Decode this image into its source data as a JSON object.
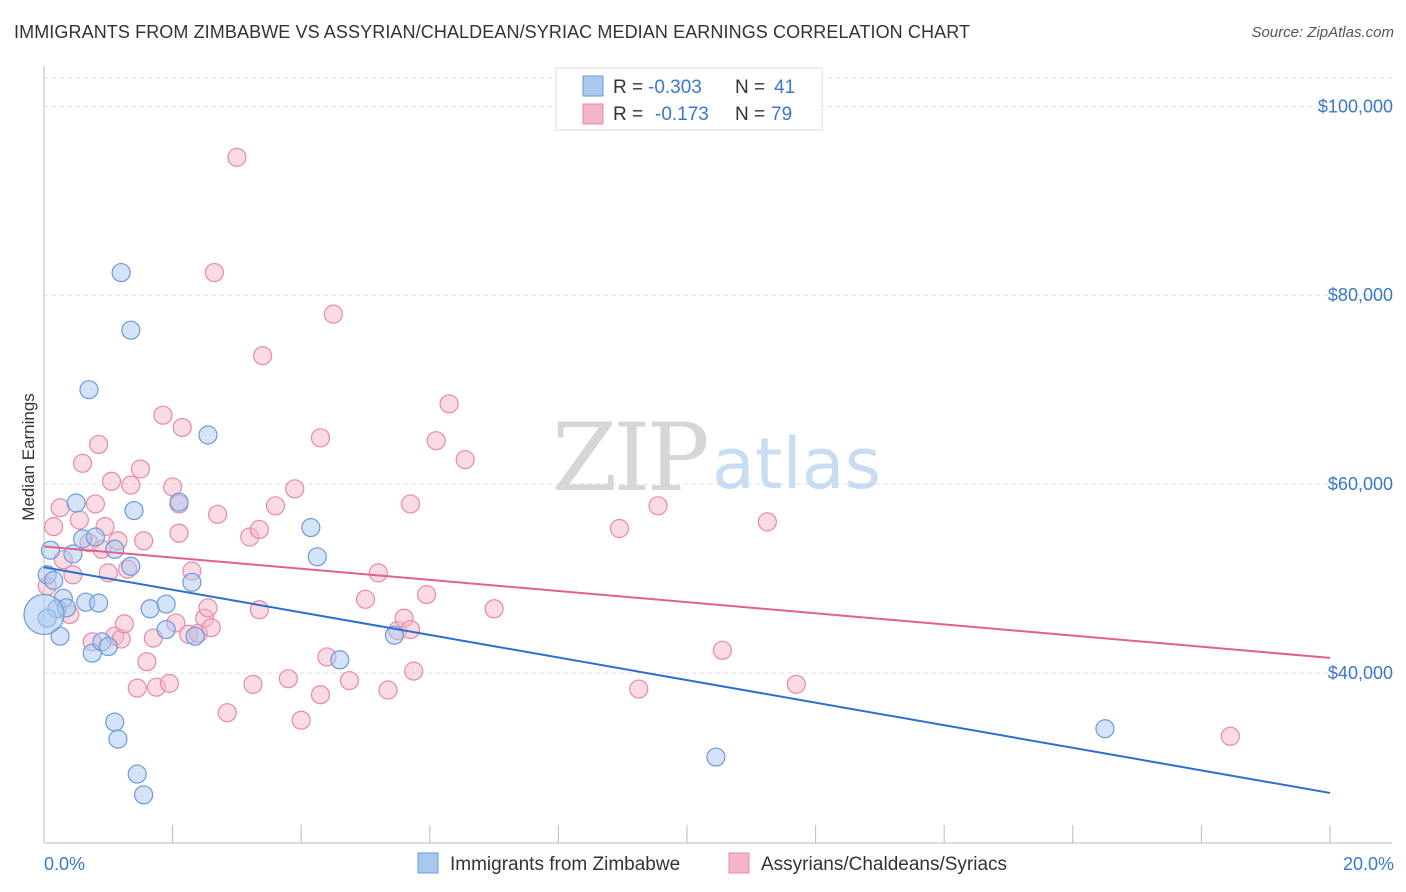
{
  "header": {
    "title": "IMMIGRANTS FROM ZIMBABWE VS ASSYRIAN/CHALDEAN/SYRIAC MEDIAN EARNINGS CORRELATION CHART",
    "source": "Source: ZipAtlas.com"
  },
  "watermark": {
    "zip": "ZIP",
    "atlas": "atlas"
  },
  "legend": {
    "r_label": "R =",
    "n_label": "N =",
    "rows": [
      {
        "r": "-0.303",
        "n": "41",
        "color": "#a9c8f0"
      },
      {
        "r": "-0.173",
        "n": "79",
        "color": "#f5b5c8"
      }
    ]
  },
  "colors": {
    "blue_fill": "#a9c8f0",
    "blue_stroke": "#6c9ad8",
    "blue_line": "#2a6fd0",
    "pink_fill": "#f5b5c8",
    "pink_stroke": "#e68aa8",
    "pink_line": "#e0628c",
    "grid": "#dddddd",
    "axis_text": "#3a78c9"
  },
  "chart_data": {
    "type": "scatter",
    "title": "IMMIGRANTS FROM ZIMBABWE VS ASSYRIAN/CHALDEAN/SYRIAC MEDIAN EARNINGS CORRELATION CHART",
    "xlabel": "",
    "ylabel": "Median Earnings",
    "xlim": [
      0,
      20
    ],
    "ylim": [
      22000,
      103000
    ],
    "x_ticks": [
      {
        "value": 0,
        "label": "0.0%"
      },
      {
        "value": 20,
        "label": "20.0%"
      }
    ],
    "y_ticks": [
      {
        "value": 40000,
        "label": "$40,000"
      },
      {
        "value": 60000,
        "label": "$60,000"
      },
      {
        "value": 80000,
        "label": "$80,000"
      },
      {
        "value": 100000,
        "label": "$100,000"
      }
    ],
    "grid": "horizontal dashed",
    "legend_position": "top-center",
    "series": [
      {
        "name": "Immigrants from Zimbabwe",
        "color": "#a9c8f0",
        "trend": {
          "x": [
            0,
            20
          ],
          "y": [
            51200,
            27300
          ]
        },
        "points": [
          [
            0.05,
            50400
          ],
          [
            0.15,
            49800
          ],
          [
            0.2,
            46800
          ],
          [
            0.25,
            43900
          ],
          [
            0.3,
            47900
          ],
          [
            0.35,
            46900
          ],
          [
            0.05,
            45800
          ],
          [
            0.1,
            53000
          ],
          [
            0.45,
            52600
          ],
          [
            0.5,
            58000
          ],
          [
            0.6,
            54200
          ],
          [
            0.65,
            47500
          ],
          [
            0.7,
            70000
          ],
          [
            0.75,
            42100
          ],
          [
            0.8,
            54400
          ],
          [
            0.85,
            47400
          ],
          [
            0.9,
            43300
          ],
          [
            1.0,
            42800
          ],
          [
            1.1,
            53100
          ],
          [
            1.1,
            34800
          ],
          [
            1.15,
            33000
          ],
          [
            1.2,
            82400
          ],
          [
            1.35,
            76300
          ],
          [
            1.35,
            51300
          ],
          [
            1.4,
            57200
          ],
          [
            1.45,
            29300
          ],
          [
            1.55,
            27100
          ],
          [
            1.65,
            46800
          ],
          [
            1.9,
            47300
          ],
          [
            1.9,
            44600
          ],
          [
            2.1,
            58100
          ],
          [
            2.3,
            49600
          ],
          [
            2.35,
            43900
          ],
          [
            2.55,
            65200
          ],
          [
            4.15,
            55400
          ],
          [
            4.25,
            52300
          ],
          [
            4.6,
            41400
          ],
          [
            5.45,
            44000
          ],
          [
            10.45,
            31100
          ],
          [
            16.5,
            34100
          ],
          [
            0.0,
            46200
          ]
        ]
      },
      {
        "name": "Assyrians/Chaldeans/Syriacs",
        "color": "#f5b5c8",
        "trend": {
          "x": [
            0,
            20
          ],
          "y": [
            53400,
            41600
          ]
        },
        "points": [
          [
            0.05,
            49200
          ],
          [
            0.15,
            55500
          ],
          [
            0.25,
            57500
          ],
          [
            0.3,
            52000
          ],
          [
            0.45,
            50400
          ],
          [
            0.55,
            56200
          ],
          [
            0.6,
            62200
          ],
          [
            0.7,
            53800
          ],
          [
            0.75,
            43300
          ],
          [
            0.8,
            57900
          ],
          [
            0.85,
            64200
          ],
          [
            0.9,
            53100
          ],
          [
            0.95,
            55500
          ],
          [
            1.0,
            50600
          ],
          [
            1.05,
            60300
          ],
          [
            1.1,
            43900
          ],
          [
            1.15,
            54000
          ],
          [
            1.2,
            43600
          ],
          [
            1.25,
            45200
          ],
          [
            1.3,
            51000
          ],
          [
            1.35,
            59900
          ],
          [
            1.45,
            38400
          ],
          [
            1.5,
            61600
          ],
          [
            1.55,
            54000
          ],
          [
            1.6,
            41200
          ],
          [
            1.7,
            43700
          ],
          [
            1.75,
            38500
          ],
          [
            1.85,
            67300
          ],
          [
            1.95,
            38900
          ],
          [
            2.0,
            59700
          ],
          [
            2.05,
            45300
          ],
          [
            2.1,
            57900
          ],
          [
            2.1,
            54800
          ],
          [
            2.15,
            66000
          ],
          [
            2.25,
            44100
          ],
          [
            2.3,
            50800
          ],
          [
            2.4,
            44200
          ],
          [
            2.5,
            45800
          ],
          [
            2.55,
            46900
          ],
          [
            2.6,
            44800
          ],
          [
            2.7,
            56800
          ],
          [
            2.85,
            35800
          ],
          [
            3.0,
            94600
          ],
          [
            3.2,
            54400
          ],
          [
            3.25,
            38800
          ],
          [
            3.35,
            46700
          ],
          [
            3.35,
            55200
          ],
          [
            3.4,
            73600
          ],
          [
            3.6,
            57700
          ],
          [
            3.8,
            39400
          ],
          [
            3.9,
            59500
          ],
          [
            4.0,
            35000
          ],
          [
            4.3,
            37700
          ],
          [
            4.3,
            64900
          ],
          [
            4.4,
            41700
          ],
          [
            4.5,
            78000
          ],
          [
            4.75,
            39200
          ],
          [
            5.0,
            47800
          ],
          [
            5.2,
            50600
          ],
          [
            5.35,
            38200
          ],
          [
            5.5,
            44500
          ],
          [
            5.6,
            45800
          ],
          [
            5.7,
            44600
          ],
          [
            5.7,
            57900
          ],
          [
            5.75,
            40200
          ],
          [
            5.95,
            48300
          ],
          [
            6.1,
            64600
          ],
          [
            6.3,
            68500
          ],
          [
            6.55,
            62600
          ],
          [
            7.0,
            46800
          ],
          [
            8.95,
            55300
          ],
          [
            9.25,
            38300
          ],
          [
            9.55,
            57700
          ],
          [
            10.55,
            42400
          ],
          [
            11.25,
            56000
          ],
          [
            11.7,
            38800
          ],
          [
            18.45,
            33300
          ],
          [
            2.65,
            82400
          ],
          [
            0.4,
            46200
          ]
        ]
      }
    ]
  }
}
